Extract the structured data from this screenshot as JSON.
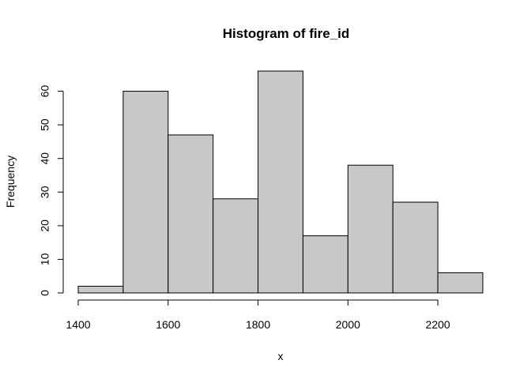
{
  "chart_data": {
    "type": "bar",
    "title": "Histogram of fire_id",
    "xlabel": "x",
    "ylabel": "Frequency",
    "bins": [
      {
        "start": 1400,
        "end": 1500,
        "count": 2
      },
      {
        "start": 1500,
        "end": 1600,
        "count": 60
      },
      {
        "start": 1600,
        "end": 1700,
        "count": 47
      },
      {
        "start": 1700,
        "end": 1800,
        "count": 28
      },
      {
        "start": 1800,
        "end": 1900,
        "count": 66
      },
      {
        "start": 1900,
        "end": 2000,
        "count": 17
      },
      {
        "start": 2000,
        "end": 2100,
        "count": 38
      },
      {
        "start": 2100,
        "end": 2200,
        "count": 27
      },
      {
        "start": 2200,
        "end": 2300,
        "count": 6
      }
    ],
    "xticks": [
      1400,
      1600,
      1800,
      2000,
      2200
    ],
    "yticks": [
      0,
      10,
      20,
      30,
      40,
      50,
      60
    ],
    "xlim": [
      1400,
      2300
    ],
    "ylim": [
      0,
      66
    ],
    "bar_color": "#c8c8c8",
    "grid": false
  }
}
